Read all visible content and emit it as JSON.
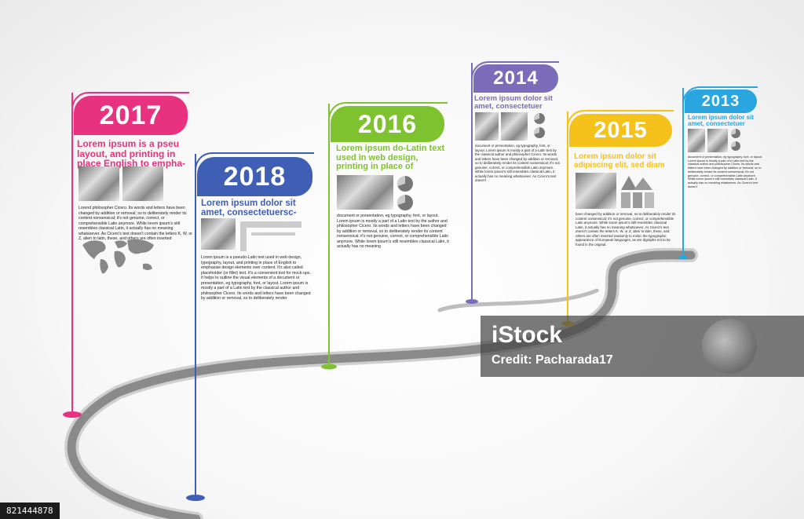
{
  "colors": {
    "pink": "#e8327f",
    "blue": "#3f5fb5",
    "green": "#7fc22f",
    "purple": "#7a6cb8",
    "yellow": "#f5c21b",
    "sky": "#29a6e0",
    "road": "#8a8a8a"
  },
  "milestones": [
    {
      "year": "2017",
      "color": "#e8327f",
      "headline": "Lorem ipsum is a pseu layout, and printing in place English to empha-",
      "body": "Lorend philosopher Cicero. Its words and letters have been changed by addition or removal, so to deliberately render its content nonsensical; it's not genuine, correct, or comprehensible Latin anymore. While lorem ipsum's still resembles classical Latin, it actually has no meaning whatsoever. As Cicero's text doesn't contain the letters K, W, or Z, alien to latin, these, and others are often inserted"
    },
    {
      "year": "2018",
      "color": "#3f5fb5",
      "headline": "Lorem ipsum dolor sit amet, consectetuersc-",
      "body": "Lorem ipsum is a pseudo-Latin text used in web design, typography, layout, and printing in place of English to emphasise design elements over content. It's also called placeholder (or filler) text. It's a convenient tool for mock-ups. It helps to outline the visual elements of a document or presentation, eg typography, font, or layout. Lorem ipsum is mostly a part of a Latin text by the classical author and philosopher Cicero. Its words and letters have been changed by addition or removal, so to deliberately render"
    },
    {
      "year": "2016",
      "color": "#7fc22f",
      "headline": "Lorem ipsum do-Latin text used in web design, printing in place of",
      "body": "document or presentation, eg typography, font, or layout. Lorem ipsum is mostly a part of a Latin text by the author and philosopher Cicero. Its words and letters have been changed by addition or removal, so to deliberately render its content nonsensical; it's not genuine, correct, or comprehensible Latin anymore. While lorem ipsum's still resembles classical Latin, it actually has no meaning"
    },
    {
      "year": "2014",
      "color": "#7a6cb8",
      "headline": "Lorem ipsum dolor sit amet, consectetuer",
      "body": "document or presentation, eg typography, font, or layout. Lorem ipsum is mostly a part of a Latin text by the classical author and philosopher Cicero. Its words and letters have been changed by addition or removal, so to deliberately render its content nonsensical; it's not genuine, correct, or comprehensible Latin anymore. While lorem ipsum's still resembles classical Latin, it actually has no meaning whatsoever. As Cicero's text doesn't"
    },
    {
      "year": "2015",
      "color": "#f5c21b",
      "headline": "Lorem ipsum dolor sit adipiscing elit, sed diam",
      "body": "been changed by addition or removal, so to deliberately render its content nonsensical; it's not genuine, correct, or comprehensible Latin anymore. While lorem ipsum's still resembles classical Latin, it actually has no meaning whatsoever. As Cicero's text doesn't contain the letters K, W, or Z, alien to latin, these, and others are often inserted randomly to mimic the typographic appearance of European languages, as are digraphs not to be found in the original."
    },
    {
      "year": "2013",
      "color": "#29a6e0",
      "headline": "Lorem ipsum dolor sit amet, consectetuer",
      "body": "document or presentation, eg typography, font, or layout. Lorem ipsum is mostly a part of a Latin text by the classical author and philosopher Cicero. Its words and letters have been changed by addition or removal, so to deliberately render its content nonsensical; it's not genuine, correct, or comprehensible Latin anymore. While lorem ipsum's still resembles classical Latin, it actually has no meaning whatsoever. As Cicero's text doesn't"
    }
  ],
  "watermark": {
    "brand": "iStock",
    "credit": "Credit: Pacharada17"
  },
  "stock_id": "821444878"
}
